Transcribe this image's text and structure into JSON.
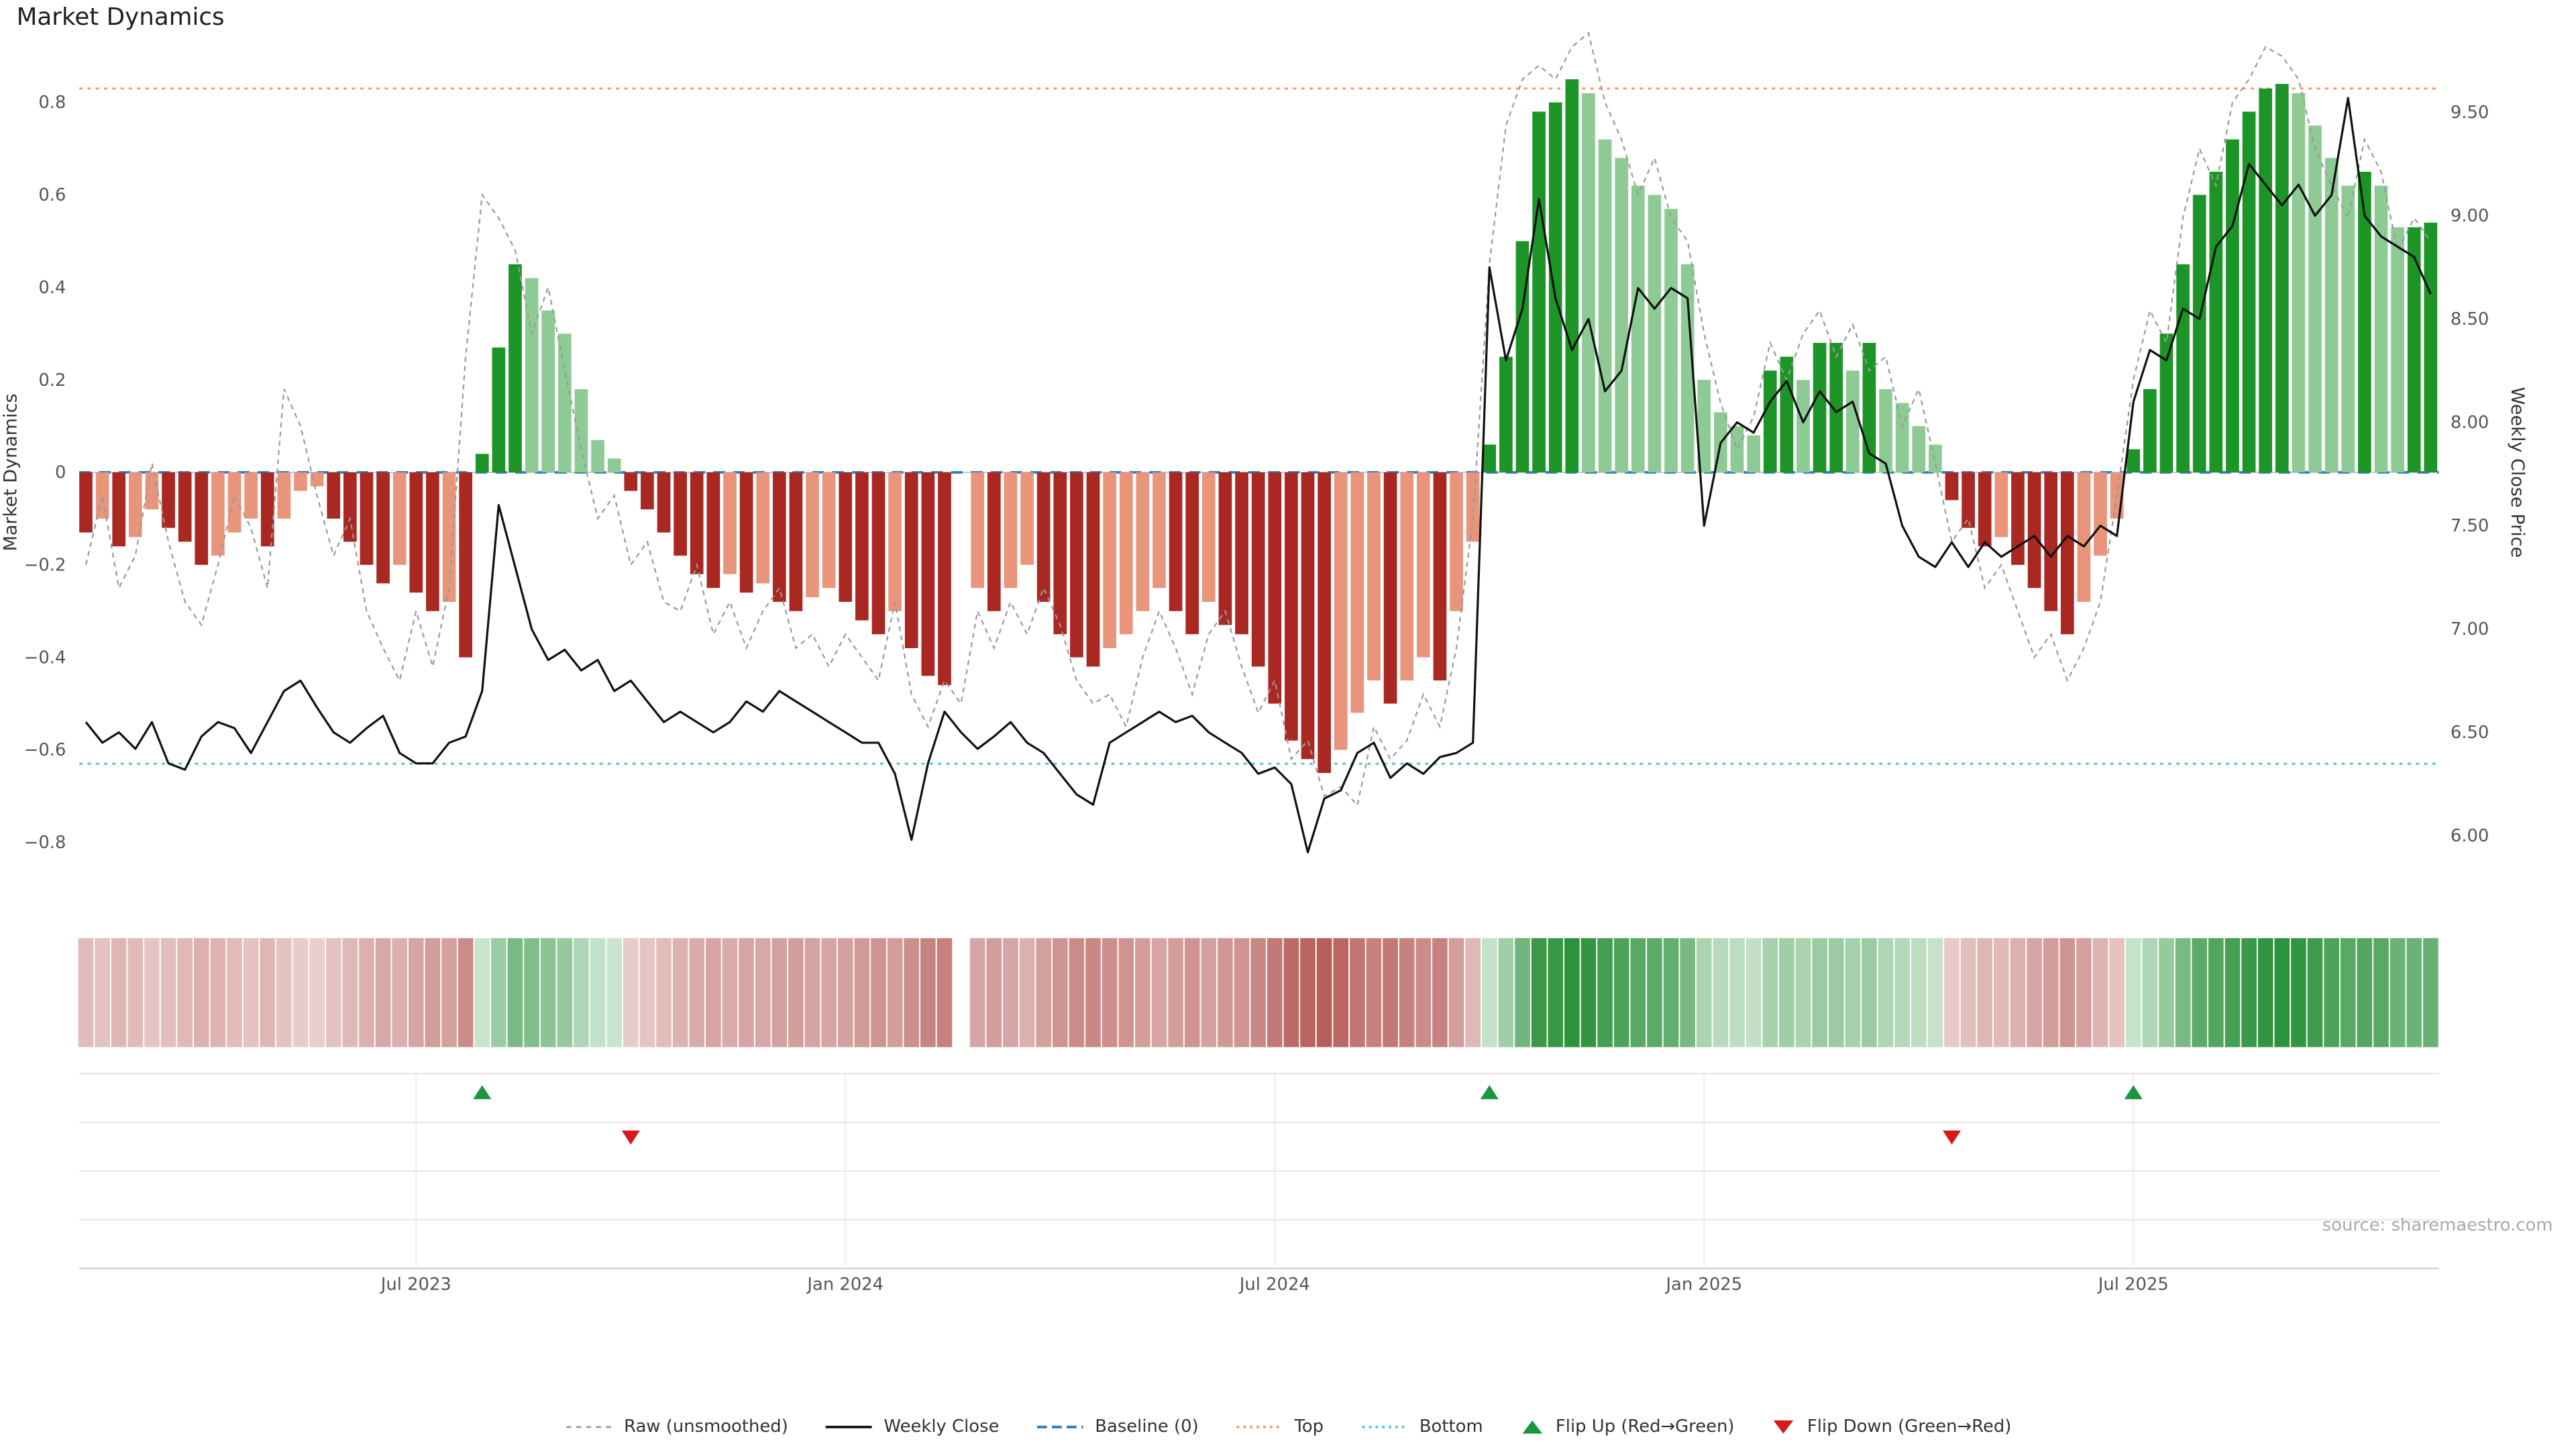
{
  "page": {
    "title": "Market Dynamics",
    "source": "source: sharemaestro.com"
  },
  "colors": {
    "raw": "#9a9a9a",
    "close": "#111111",
    "baseline": "#2d7fb8",
    "top": "#fb9a6a",
    "bottom": "#4fc8da",
    "flip_up": "#1a9641",
    "flip_down": "#d7191c",
    "bar_dark_red": "#a92822",
    "bar_light_red": "#e8957c",
    "bar_dark_green": "#1d9427",
    "bar_light_green": "#8ecb94",
    "axis_text": "#555555",
    "grid": "#e9e9e9"
  },
  "legend": {
    "items": [
      {
        "label": "Raw (unsmoothed)",
        "swatch": "dash-gray"
      },
      {
        "label": "Weekly Close",
        "swatch": "solid-black"
      },
      {
        "label": "Baseline (0)",
        "swatch": "dash-blue"
      },
      {
        "label": "Top",
        "swatch": "dot-orange"
      },
      {
        "label": "Bottom",
        "swatch": "dot-cyan"
      },
      {
        "label": "Flip Up (Red→Green)",
        "swatch": "tri-up-green"
      },
      {
        "label": "Flip Down (Green→Red)",
        "swatch": "tri-down-red"
      }
    ]
  },
  "chart_data": {
    "type": "bar+line",
    "title": "Market Dynamics",
    "ylabel_left": "Market Dynamics",
    "ylabel_right": "Weekly Close Price",
    "x_axis": {
      "unit": "weeks",
      "n_points": 143,
      "tick_indices": [
        20,
        46,
        72,
        98,
        124
      ],
      "tick_labels": [
        "Jul 2023",
        "Jan 2024",
        "Jul 2024",
        "Jan 2025",
        "Jul 2025"
      ]
    },
    "ylim_left": [
      -0.9,
      0.88
    ],
    "ylim_right": [
      5.77,
      9.97
    ],
    "y_left_ticks": [
      {
        "v": 0.8,
        "label": "0.8"
      },
      {
        "v": 0.6,
        "label": "0.6"
      },
      {
        "v": 0.4,
        "label": "0.4"
      },
      {
        "v": 0.2,
        "label": "0.2"
      },
      {
        "v": 0,
        "label": "0"
      },
      {
        "v": -0.2,
        "label": "−0.2"
      },
      {
        "v": -0.4,
        "label": "−0.4"
      },
      {
        "v": -0.6,
        "label": "−0.6"
      },
      {
        "v": -0.8,
        "label": "−0.8"
      }
    ],
    "y_right_ticks": [
      {
        "v": 9.5,
        "label": "9.50"
      },
      {
        "v": 9.0,
        "label": "9.00"
      },
      {
        "v": 8.5,
        "label": "8.50"
      },
      {
        "v": 8.0,
        "label": "8.00"
      },
      {
        "v": 7.5,
        "label": "7.50"
      },
      {
        "v": 7.0,
        "label": "7.00"
      },
      {
        "v": 6.5,
        "label": "6.50"
      },
      {
        "v": 6.0,
        "label": "6.00"
      }
    ],
    "baseline_level": 0,
    "top_level": 0.83,
    "bottom_level": -0.63,
    "flip_up_indices": [
      24,
      85,
      124
    ],
    "flip_down_indices": [
      33,
      113
    ],
    "series": [
      {
        "name": "Market Dynamics (smoothed)",
        "type": "bar",
        "axis": "left",
        "values": [
          -0.13,
          -0.1,
          -0.16,
          -0.14,
          -0.08,
          -0.12,
          -0.15,
          -0.2,
          -0.18,
          -0.13,
          -0.1,
          -0.16,
          -0.1,
          -0.04,
          -0.03,
          -0.1,
          -0.15,
          -0.2,
          -0.24,
          -0.2,
          -0.26,
          -0.3,
          -0.28,
          -0.4,
          0.04,
          0.27,
          0.45,
          0.42,
          0.35,
          0.3,
          0.18,
          0.07,
          0.03,
          -0.04,
          -0.08,
          -0.13,
          -0.18,
          -0.22,
          -0.25,
          -0.22,
          -0.26,
          -0.24,
          -0.28,
          -0.3,
          -0.27,
          -0.25,
          -0.28,
          -0.32,
          -0.35,
          -0.3,
          -0.38,
          -0.44,
          -0.46,
          null,
          -0.25,
          -0.3,
          -0.25,
          -0.2,
          -0.28,
          -0.35,
          -0.4,
          -0.42,
          -0.38,
          -0.35,
          -0.3,
          -0.25,
          -0.3,
          -0.35,
          -0.28,
          -0.33,
          -0.35,
          -0.42,
          -0.5,
          -0.58,
          -0.62,
          -0.65,
          -0.6,
          -0.52,
          -0.45,
          -0.5,
          -0.45,
          -0.4,
          -0.45,
          -0.3,
          -0.15,
          0.06,
          0.25,
          0.5,
          0.78,
          0.8,
          0.85,
          0.82,
          0.72,
          0.68,
          0.62,
          0.6,
          0.57,
          0.45,
          0.2,
          0.13,
          0.1,
          0.08,
          0.22,
          0.25,
          0.2,
          0.28,
          0.28,
          0.22,
          0.28,
          0.18,
          0.15,
          0.1,
          0.06,
          -0.06,
          -0.12,
          -0.16,
          -0.14,
          -0.2,
          -0.25,
          -0.3,
          -0.35,
          -0.28,
          -0.18,
          -0.1,
          0.05,
          0.18,
          0.3,
          0.45,
          0.6,
          0.65,
          0.72,
          0.78,
          0.83,
          0.84,
          0.82,
          0.75,
          0.68,
          0.62,
          0.65,
          0.62,
          0.53,
          0.53,
          0.54
        ]
      },
      {
        "name": "Raw (unsmoothed)",
        "type": "line",
        "axis": "left",
        "values": [
          -0.2,
          -0.05,
          -0.25,
          -0.18,
          0.02,
          -0.15,
          -0.28,
          -0.33,
          -0.2,
          -0.05,
          -0.12,
          -0.25,
          0.18,
          0.1,
          -0.05,
          -0.18,
          -0.1,
          -0.3,
          -0.38,
          -0.45,
          -0.3,
          -0.42,
          -0.25,
          0.25,
          0.6,
          0.55,
          0.48,
          0.3,
          0.4,
          0.22,
          0.05,
          -0.1,
          -0.05,
          -0.2,
          -0.15,
          -0.28,
          -0.3,
          -0.2,
          -0.35,
          -0.28,
          -0.38,
          -0.3,
          -0.25,
          -0.38,
          -0.35,
          -0.42,
          -0.35,
          -0.4,
          -0.45,
          -0.28,
          -0.48,
          -0.55,
          -0.45,
          -0.5,
          -0.3,
          -0.38,
          -0.28,
          -0.35,
          -0.25,
          -0.33,
          -0.45,
          -0.5,
          -0.48,
          -0.55,
          -0.4,
          -0.3,
          -0.38,
          -0.48,
          -0.35,
          -0.3,
          -0.42,
          -0.52,
          -0.45,
          -0.62,
          -0.58,
          -0.7,
          -0.68,
          -0.72,
          -0.55,
          -0.62,
          -0.58,
          -0.48,
          -0.55,
          -0.38,
          -0.1,
          0.45,
          0.75,
          0.85,
          0.88,
          0.85,
          0.92,
          0.95,
          0.8,
          0.72,
          0.6,
          0.68,
          0.55,
          0.5,
          0.3,
          0.15,
          0.05,
          0.12,
          0.28,
          0.2,
          0.3,
          0.35,
          0.25,
          0.32,
          0.22,
          0.25,
          0.1,
          0.18,
          0.02,
          -0.15,
          -0.1,
          -0.25,
          -0.2,
          -0.3,
          -0.4,
          -0.35,
          -0.45,
          -0.38,
          -0.28,
          -0.05,
          0.2,
          0.35,
          0.28,
          0.55,
          0.7,
          0.62,
          0.8,
          0.85,
          0.92,
          0.9,
          0.85,
          0.7,
          0.62,
          0.55,
          0.72,
          0.65,
          0.48,
          0.55,
          0.5
        ]
      },
      {
        "name": "Weekly Close",
        "type": "line",
        "axis": "right",
        "values": [
          6.55,
          6.45,
          6.5,
          6.42,
          6.55,
          6.35,
          6.32,
          6.48,
          6.55,
          6.52,
          6.4,
          6.55,
          6.7,
          6.75,
          6.62,
          6.5,
          6.45,
          6.52,
          6.58,
          6.4,
          6.35,
          6.35,
          6.45,
          6.48,
          6.7,
          7.6,
          7.3,
          7.0,
          6.85,
          6.9,
          6.8,
          6.85,
          6.7,
          6.75,
          6.65,
          6.55,
          6.6,
          6.55,
          6.5,
          6.55,
          6.65,
          6.6,
          6.7,
          6.65,
          6.6,
          6.55,
          6.5,
          6.45,
          6.45,
          6.3,
          5.98,
          6.35,
          6.6,
          6.5,
          6.42,
          6.48,
          6.55,
          6.45,
          6.4,
          6.3,
          6.2,
          6.15,
          6.45,
          6.5,
          6.55,
          6.6,
          6.55,
          6.58,
          6.5,
          6.45,
          6.4,
          6.3,
          6.33,
          6.25,
          5.92,
          6.18,
          6.22,
          6.4,
          6.45,
          6.28,
          6.35,
          6.3,
          6.38,
          6.4,
          6.45,
          8.75,
          8.3,
          8.55,
          9.08,
          8.6,
          8.35,
          8.5,
          8.15,
          8.25,
          8.65,
          8.55,
          8.65,
          8.6,
          7.5,
          7.9,
          8.0,
          7.95,
          8.1,
          8.2,
          8.0,
          8.15,
          8.05,
          8.1,
          7.85,
          7.8,
          7.5,
          7.35,
          7.3,
          7.42,
          7.3,
          7.42,
          7.35,
          7.4,
          7.45,
          7.35,
          7.45,
          7.4,
          7.5,
          7.45,
          8.1,
          8.35,
          8.3,
          8.55,
          8.5,
          8.85,
          8.95,
          9.25,
          9.15,
          9.05,
          9.15,
          9.0,
          9.1,
          9.57,
          9.0,
          8.9,
          8.85,
          8.8,
          8.62
        ]
      }
    ],
    "heatmap": {
      "description": "color strip of bar values, red negative to green positive"
    }
  }
}
